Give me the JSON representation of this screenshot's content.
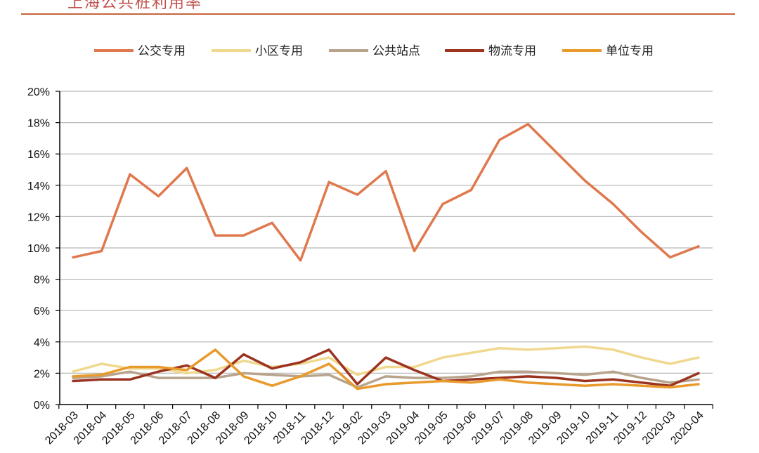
{
  "page": {
    "title": "上海公共桩利用率"
  },
  "chart_data": {
    "type": "line",
    "title": "上海公共桩利用率",
    "xlabel": "",
    "ylabel": "",
    "ylim": [
      0,
      20
    ],
    "y_ticks": [
      "0%",
      "2%",
      "4%",
      "6%",
      "8%",
      "10%",
      "12%",
      "14%",
      "16%",
      "18%",
      "20%"
    ],
    "grid": true,
    "legend_position": "top",
    "categories": [
      "2018-03",
      "2018-04",
      "2018-05",
      "2018-06",
      "2018-07",
      "2018-08",
      "2018-09",
      "2018-10",
      "2018-11",
      "2018-12",
      "2019-02",
      "2019-03",
      "2019-04",
      "2019-05",
      "2019-06",
      "2019-07",
      "2019-08",
      "2019-09",
      "2019-10",
      "2019-11",
      "2019-12",
      "2020-03",
      "2020-04"
    ],
    "series": [
      {
        "name": "公交专用",
        "color": "#e0784e",
        "values": [
          9.4,
          9.8,
          14.7,
          13.3,
          15.1,
          10.8,
          10.8,
          11.6,
          9.2,
          14.2,
          13.4,
          14.9,
          9.8,
          12.8,
          13.7,
          16.9,
          17.9,
          16.1,
          14.3,
          12.8,
          11.0,
          9.4,
          10.1
        ]
      },
      {
        "name": "小区专用",
        "color": "#f0d88e",
        "values": [
          2.1,
          2.6,
          2.3,
          2.3,
          2.0,
          2.2,
          2.8,
          2.4,
          2.6,
          3.0,
          1.9,
          2.4,
          2.4,
          3.0,
          3.3,
          3.6,
          3.5,
          3.6,
          3.7,
          3.5,
          3.0,
          2.6,
          3.0
        ]
      },
      {
        "name": "公共站点",
        "color": "#b8a48c",
        "values": [
          1.7,
          1.8,
          2.1,
          1.7,
          1.7,
          1.7,
          2.0,
          1.9,
          1.8,
          1.9,
          1.1,
          1.8,
          1.7,
          1.7,
          1.8,
          2.1,
          2.1,
          2.0,
          1.9,
          2.1,
          1.7,
          1.4,
          1.6
        ]
      },
      {
        "name": "物流专用",
        "color": "#9b3320",
        "values": [
          1.5,
          1.6,
          1.6,
          2.1,
          2.5,
          1.7,
          3.2,
          2.3,
          2.7,
          3.5,
          1.3,
          3.0,
          2.2,
          1.5,
          1.6,
          1.7,
          1.8,
          1.7,
          1.5,
          1.6,
          1.4,
          1.2,
          2.0
        ]
      },
      {
        "name": "单位专用",
        "color": "#e89a2c",
        "values": [
          1.8,
          1.9,
          2.4,
          2.4,
          2.2,
          3.5,
          1.8,
          1.2,
          1.8,
          2.6,
          1.0,
          1.3,
          1.4,
          1.5,
          1.4,
          1.6,
          1.4,
          1.3,
          1.2,
          1.3,
          1.2,
          1.1,
          1.3
        ]
      }
    ]
  }
}
